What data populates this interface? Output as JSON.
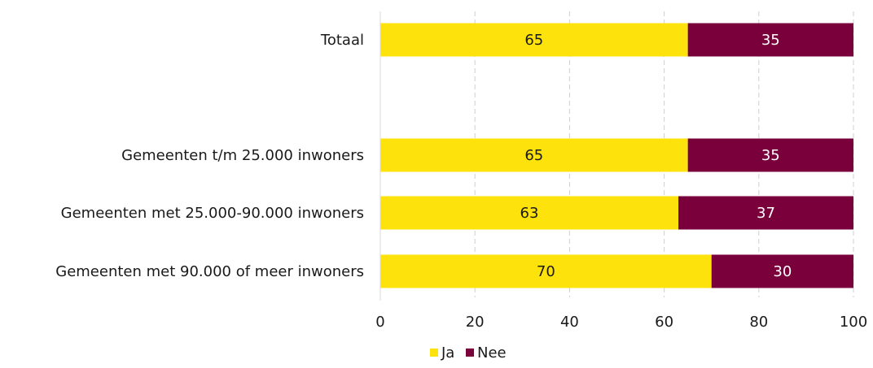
{
  "chart_data": {
    "type": "bar",
    "orientation": "horizontal",
    "stacked": true,
    "categories": [
      "Totaal",
      "",
      "Gemeenten t/m 25.000 inwoners",
      "Gemeenten met 25.000-90.000 inwoners",
      "Gemeenten met 90.000 of meer inwoners"
    ],
    "series": [
      {
        "name": "Ja",
        "color": "#FDE20C",
        "label_color": "#1a1a1a",
        "values": [
          65,
          null,
          65,
          63,
          70
        ]
      },
      {
        "name": "Nee",
        "color": "#7A003C",
        "label_color": "#ffffff",
        "values": [
          35,
          null,
          35,
          37,
          30
        ]
      }
    ],
    "xlim": [
      0,
      100
    ],
    "x_ticks": [
      0,
      20,
      40,
      60,
      80,
      100
    ],
    "grid": "vertical dashed",
    "legend": "bottom-center",
    "title": "",
    "xlabel": "",
    "ylabel": ""
  }
}
